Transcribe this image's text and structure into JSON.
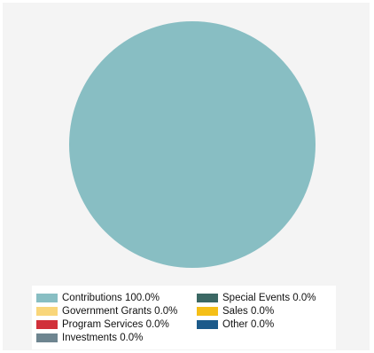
{
  "chart_data": {
    "type": "pie",
    "title": "",
    "slices": [
      {
        "label": "Contributions 100.0%",
        "value": 100.0,
        "color": "#88bec3"
      },
      {
        "label": "Government Grants 0.0%",
        "value": 0.0,
        "color": "#f9d67a"
      },
      {
        "label": "Program Services 0.0%",
        "value": 0.0,
        "color": "#d1303a"
      },
      {
        "label": "Investments 0.0%",
        "value": 0.0,
        "color": "#6e8590"
      },
      {
        "label": "Special Events 0.0%",
        "value": 0.0,
        "color": "#3b6864"
      },
      {
        "label": "Sales 0.0%",
        "value": 0.0,
        "color": "#f5bf17"
      },
      {
        "label": "Other 0.0%",
        "value": 0.0,
        "color": "#1c5a8a"
      }
    ],
    "legend_position": "bottom"
  }
}
